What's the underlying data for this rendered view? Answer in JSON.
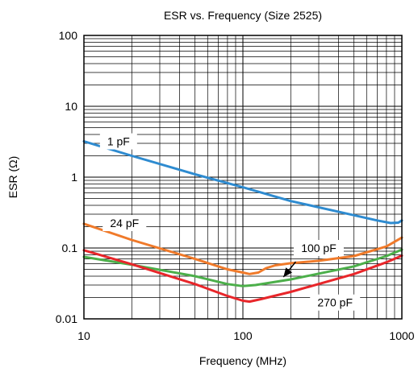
{
  "chart_data": {
    "type": "line",
    "title": "ESR vs. Frequency (Size 2525)",
    "xlabel": "Frequency (MHz)",
    "ylabel": "ESR (Ω)",
    "x_scale": "log",
    "y_scale": "log",
    "xlim": [
      10,
      1000
    ],
    "ylim": [
      0.01,
      100
    ],
    "grid": true,
    "x_ticks": [
      {
        "value": 10,
        "label": "10"
      },
      {
        "value": 100,
        "label": "100"
      },
      {
        "value": 1000,
        "label": "1000"
      }
    ],
    "y_ticks": [
      {
        "value": 0.01,
        "label": "0.01"
      },
      {
        "value": 0.1,
        "label": "0.1"
      },
      {
        "value": 1,
        "label": "1"
      },
      {
        "value": 10,
        "label": "10"
      },
      {
        "value": 100,
        "label": "100"
      }
    ],
    "series": [
      {
        "name": "1 pF",
        "color": "#2e8bd0",
        "label_at": {
          "x": 16.5,
          "y": 3.2
        },
        "points": [
          [
            10,
            3.2
          ],
          [
            20,
            2.0
          ],
          [
            50,
            1.1
          ],
          [
            100,
            0.72
          ],
          [
            200,
            0.46
          ],
          [
            500,
            0.29
          ],
          [
            700,
            0.245
          ],
          [
            850,
            0.225
          ],
          [
            950,
            0.228
          ],
          [
            1000,
            0.245
          ]
        ]
      },
      {
        "name": "24 pF",
        "color": "#f07a2a",
        "label_at": {
          "x": 18,
          "y": 0.225
        },
        "points": [
          [
            10,
            0.22
          ],
          [
            20,
            0.13
          ],
          [
            50,
            0.07
          ],
          [
            80,
            0.05
          ],
          [
            100,
            0.045
          ],
          [
            110,
            0.043
          ],
          [
            125,
            0.045
          ],
          [
            140,
            0.052
          ],
          [
            160,
            0.057
          ],
          [
            200,
            0.061
          ],
          [
            300,
            0.066
          ],
          [
            500,
            0.077
          ],
          [
            800,
            0.105
          ],
          [
            1000,
            0.14
          ]
        ]
      },
      {
        "name": "100 pF",
        "color": "#4caf4a",
        "label_at": {
          "x": 300,
          "y": 0.1
        },
        "points": [
          [
            10,
            0.075
          ],
          [
            20,
            0.058
          ],
          [
            50,
            0.04
          ],
          [
            80,
            0.031
          ],
          [
            100,
            0.029
          ],
          [
            120,
            0.03
          ],
          [
            200,
            0.036
          ],
          [
            500,
            0.055
          ],
          [
            800,
            0.077
          ],
          [
            1000,
            0.095
          ]
        ]
      },
      {
        "name": "270 pF",
        "color": "#e8262a",
        "label_at": {
          "x": 380,
          "y": 0.017
        },
        "points": [
          [
            10,
            0.093
          ],
          [
            20,
            0.059
          ],
          [
            50,
            0.031
          ],
          [
            80,
            0.021
          ],
          [
            100,
            0.018
          ],
          [
            110,
            0.0175
          ],
          [
            130,
            0.019
          ],
          [
            200,
            0.024
          ],
          [
            500,
            0.043
          ],
          [
            800,
            0.063
          ],
          [
            1000,
            0.078
          ]
        ]
      }
    ],
    "annotations": [
      {
        "type": "arrow",
        "from": {
          "x": 215,
          "y": 0.064
        },
        "to": {
          "x": 180,
          "y": 0.039
        }
      }
    ]
  }
}
